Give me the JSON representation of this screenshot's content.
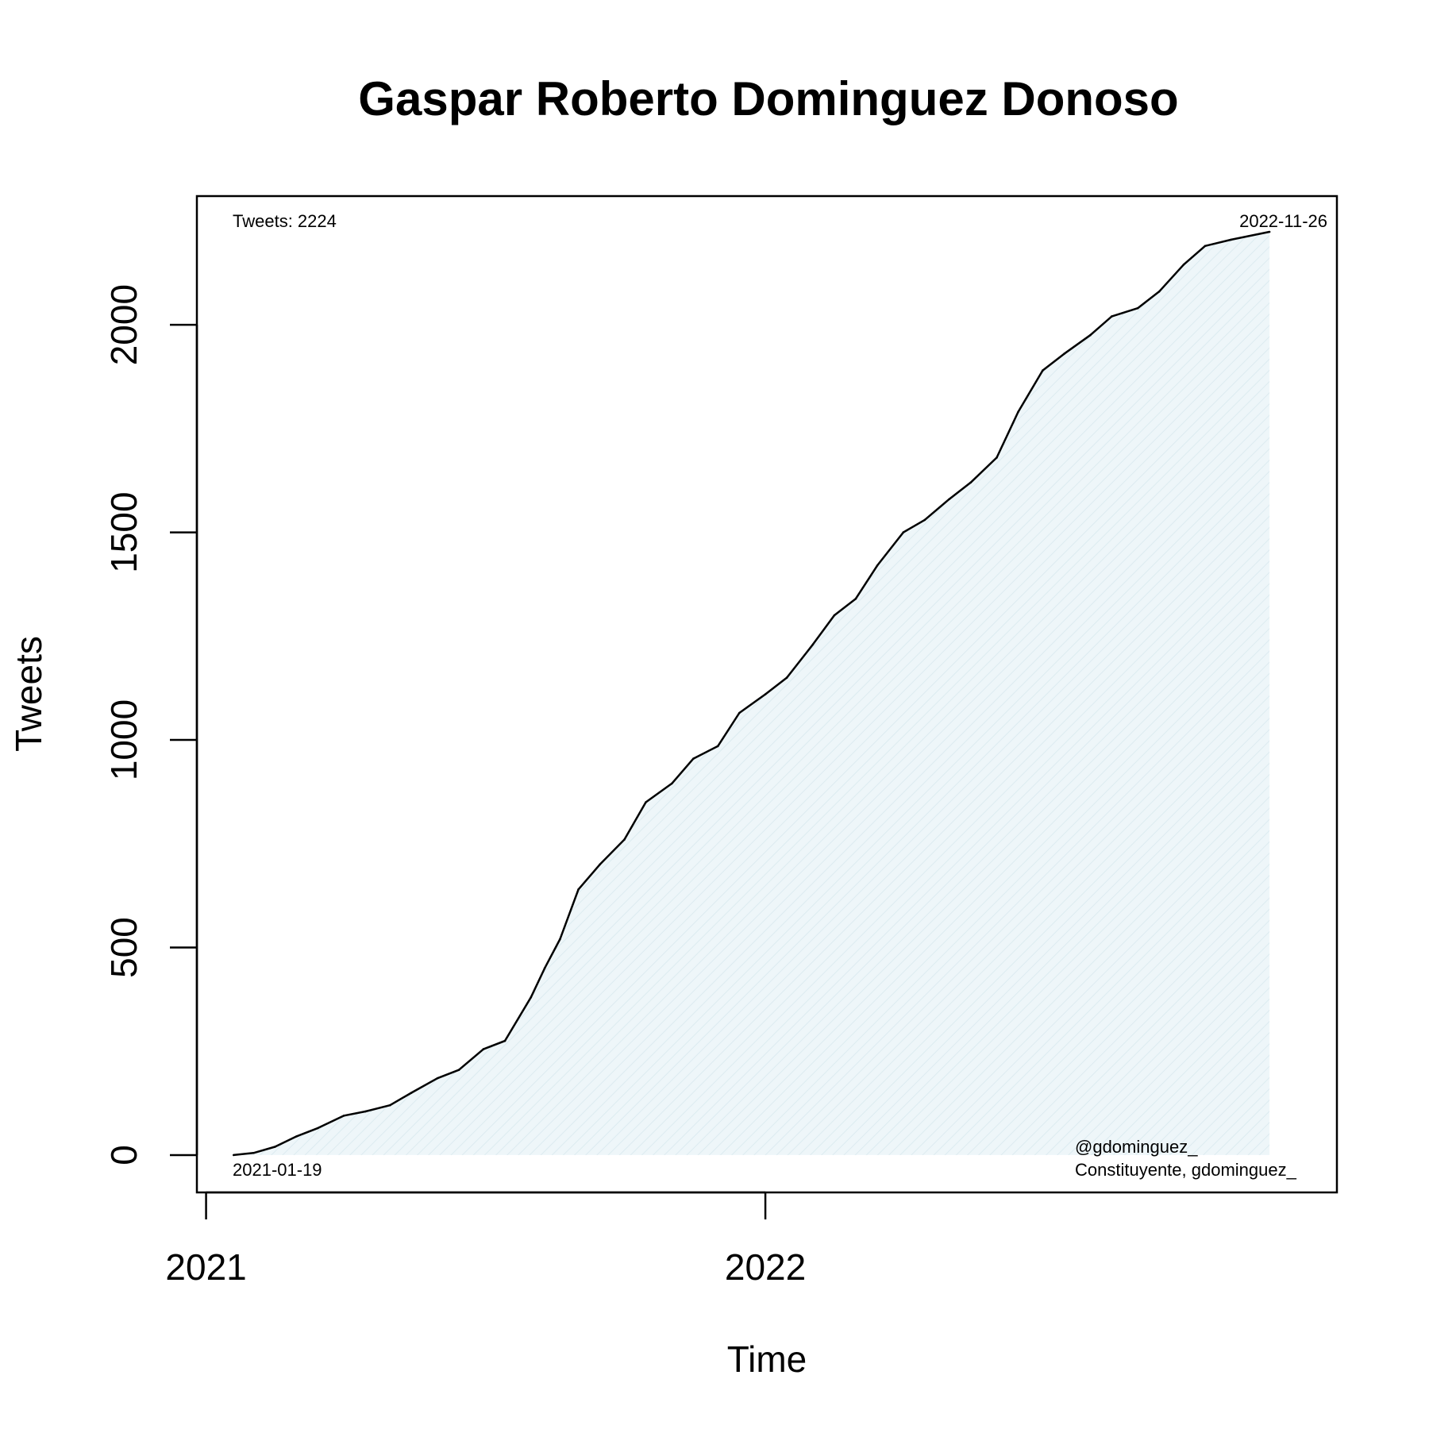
{
  "chart_data": {
    "type": "area",
    "title": "Gaspar Roberto Dominguez Donoso",
    "xlabel": "Time",
    "ylabel": "Tweets",
    "xlim": [
      "2020-12-26",
      "2023-01-09"
    ],
    "ylim": [
      -90,
      2310
    ],
    "x_ticks": [
      {
        "date": "2021-01-01",
        "label": "2021"
      },
      {
        "date": "2022-01-01",
        "label": "2022"
      }
    ],
    "y_ticks": [
      {
        "value": 0,
        "label": "0"
      },
      {
        "value": 500,
        "label": "500"
      },
      {
        "value": 1000,
        "label": "1000"
      },
      {
        "value": 1500,
        "label": "1500"
      },
      {
        "value": 2000,
        "label": "2000"
      }
    ],
    "grid": false,
    "colors": {
      "line": "#000000",
      "fill": "#eef6f9",
      "hatch": "#dcebf0"
    },
    "annotations": {
      "total": "Tweets: 2224",
      "end_date": "2022-11-26",
      "start_date": "2021-01-19",
      "handle": "@gdominguez_",
      "description": "Constituyente, gdominguez_"
    },
    "series": [
      {
        "x": [
          "2021-01-19",
          "2021-02-01",
          "2021-02-15",
          "2021-03-01",
          "2021-03-15",
          "2021-04-01",
          "2021-04-15",
          "2021-05-01",
          "2021-05-15",
          "2021-06-01",
          "2021-06-15",
          "2021-07-01",
          "2021-07-15",
          "2021-08-01",
          "2021-08-10",
          "2021-08-20",
          "2021-09-01",
          "2021-09-15",
          "2021-10-01",
          "2021-10-15",
          "2021-11-01",
          "2021-11-15",
          "2021-12-01",
          "2021-12-15",
          "2022-01-01",
          "2022-01-15",
          "2022-02-01",
          "2022-02-15",
          "2022-03-01",
          "2022-03-15",
          "2022-04-01",
          "2022-04-15",
          "2022-05-01",
          "2022-05-15",
          "2022-06-01",
          "2022-06-15",
          "2022-07-01",
          "2022-07-15",
          "2022-08-01",
          "2022-08-15",
          "2022-09-01",
          "2022-09-15",
          "2022-10-01",
          "2022-10-15",
          "2022-11-01",
          "2022-11-26"
        ],
        "y": [
          0,
          5,
          20,
          45,
          65,
          95,
          105,
          120,
          150,
          185,
          205,
          255,
          275,
          380,
          450,
          520,
          640,
          700,
          760,
          850,
          895,
          955,
          985,
          1065,
          1110,
          1150,
          1230,
          1300,
          1340,
          1420,
          1500,
          1530,
          1580,
          1620,
          1680,
          1790,
          1890,
          1930,
          1975,
          2020,
          2040,
          2080,
          2145,
          2190,
          2205,
          2224
        ]
      }
    ]
  }
}
